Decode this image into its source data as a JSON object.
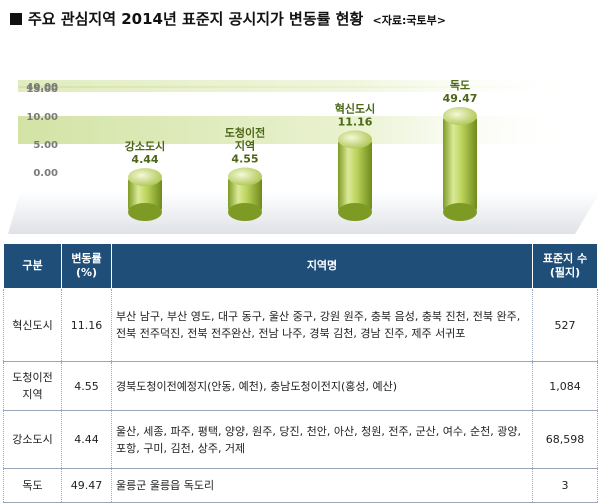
{
  "header": {
    "title": "주요 관심지역 2014년 표준지 공시지가 변동률 현황",
    "source": "<자료:국토부>"
  },
  "chart_data": {
    "type": "bar",
    "categories": [
      "강소도시",
      "도청이전\n지역",
      "혁신도시",
      "독도"
    ],
    "values": [
      4.44,
      4.55,
      11.16,
      49.47
    ],
    "value_labels": [
      "4.44",
      "4.55",
      "11.16",
      "49.47"
    ],
    "y_ticks": [
      "0.00",
      "5.00",
      "10.00",
      "15.00",
      "40.00"
    ],
    "y_tick_values": [
      0,
      5,
      10,
      15,
      40
    ],
    "axis_break": true,
    "grid": true,
    "colors": {
      "bar_light": "#eef5c6",
      "bar_mid": "#b5cd56",
      "bar_dark": "#6e8a1a",
      "label": "#4a6616",
      "band": "#d9e7b3"
    }
  },
  "table": {
    "headers": [
      "구분",
      "변동률\n(%)",
      "지역명",
      "표준지 수\n(필지)"
    ],
    "rows": [
      {
        "type": "혁신도시",
        "rate": "11.16",
        "regions": "부산 남구, 부산 영도, 대구 동구, 울산 중구, 강원 원주, 충북 음성, 충북 진천, 전북 완주, 전북 전주덕진, 전북 전주완산, 전남 나주, 경북 김천, 경남 진주, 제주 서귀포",
        "count": "527"
      },
      {
        "type": "도청이전\n지역",
        "rate": "4.55",
        "regions": "경북도청이전예정지(안동, 예천), 충남도청이전지(홍성, 예산)",
        "count": "1,084"
      },
      {
        "type": "강소도시",
        "rate": "4.44",
        "regions": "울산, 세종, 파주, 평택, 양양, 원주, 당진, 천안, 아산, 청원, 전주, 군산, 여수, 순천, 광양, 포항, 구미, 김천, 상주, 거제",
        "count": "68,598"
      },
      {
        "type": "독도",
        "rate": "49.47",
        "regions": "울릉군 울릉읍 독도리",
        "count": "3"
      }
    ]
  }
}
